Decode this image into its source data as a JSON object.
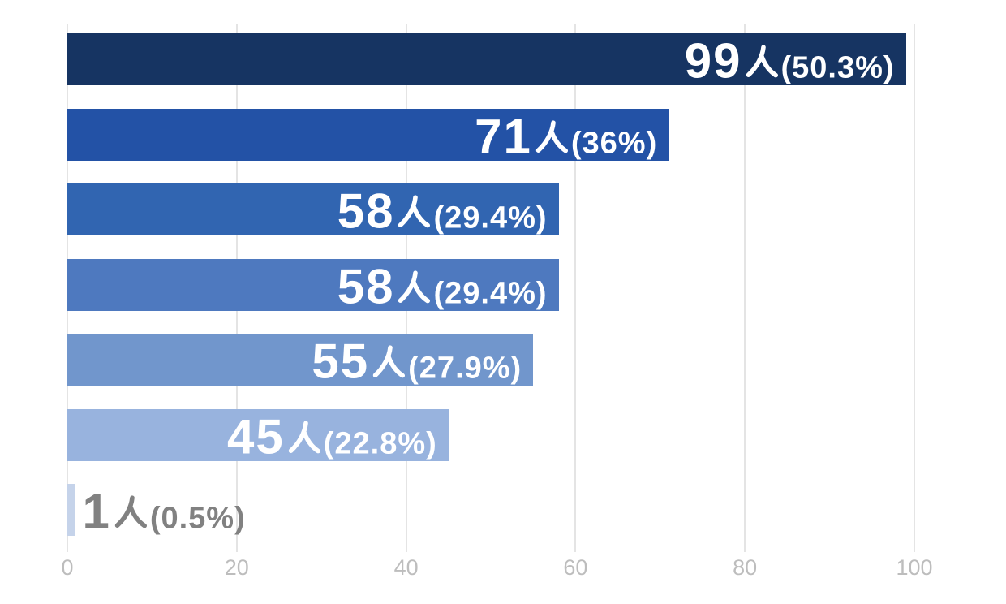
{
  "chart_data": {
    "type": "bar",
    "orientation": "horizontal",
    "title": "",
    "xlabel": "",
    "ylabel": "",
    "xlim": [
      0,
      100
    ],
    "x_ticks": [
      0,
      20,
      40,
      60,
      80,
      100
    ],
    "grid": true,
    "value_unit": "人",
    "bars": [
      {
        "value": 99,
        "count": "99",
        "unit": "人",
        "percent": "(50.3%)",
        "color": "#163462",
        "label_color": "#ffffff",
        "label_position": "inside"
      },
      {
        "value": 71,
        "count": "71",
        "unit": "人",
        "percent": "(36%)",
        "color": "#2352a6",
        "label_color": "#ffffff",
        "label_position": "inside"
      },
      {
        "value": 58,
        "count": "58",
        "unit": "人",
        "percent": "(29.4%)",
        "color": "#3165b1",
        "label_color": "#ffffff",
        "label_position": "inside"
      },
      {
        "value": 58,
        "count": "58",
        "unit": "人",
        "percent": "(29.4%)",
        "color": "#4e79bf",
        "label_color": "#ffffff",
        "label_position": "inside"
      },
      {
        "value": 55,
        "count": "55",
        "unit": "人",
        "percent": "(27.9%)",
        "color": "#7196cc",
        "label_color": "#ffffff",
        "label_position": "inside"
      },
      {
        "value": 45,
        "count": "45",
        "unit": "人",
        "percent": "(22.8%)",
        "color": "#98b3de",
        "label_color": "#ffffff",
        "label_position": "inside"
      },
      {
        "value": 1,
        "count": "1",
        "unit": "人",
        "percent": "(0.5%)",
        "color": "#c5d3ea",
        "label_color": "#818181",
        "label_position": "outside"
      }
    ]
  },
  "axis": {
    "tick_labels": [
      "0",
      "20",
      "40",
      "60",
      "80",
      "100"
    ],
    "label_color": "#bdbdbd"
  },
  "colors": {
    "background": "#ffffff",
    "gridline": "#e4e4e4"
  }
}
